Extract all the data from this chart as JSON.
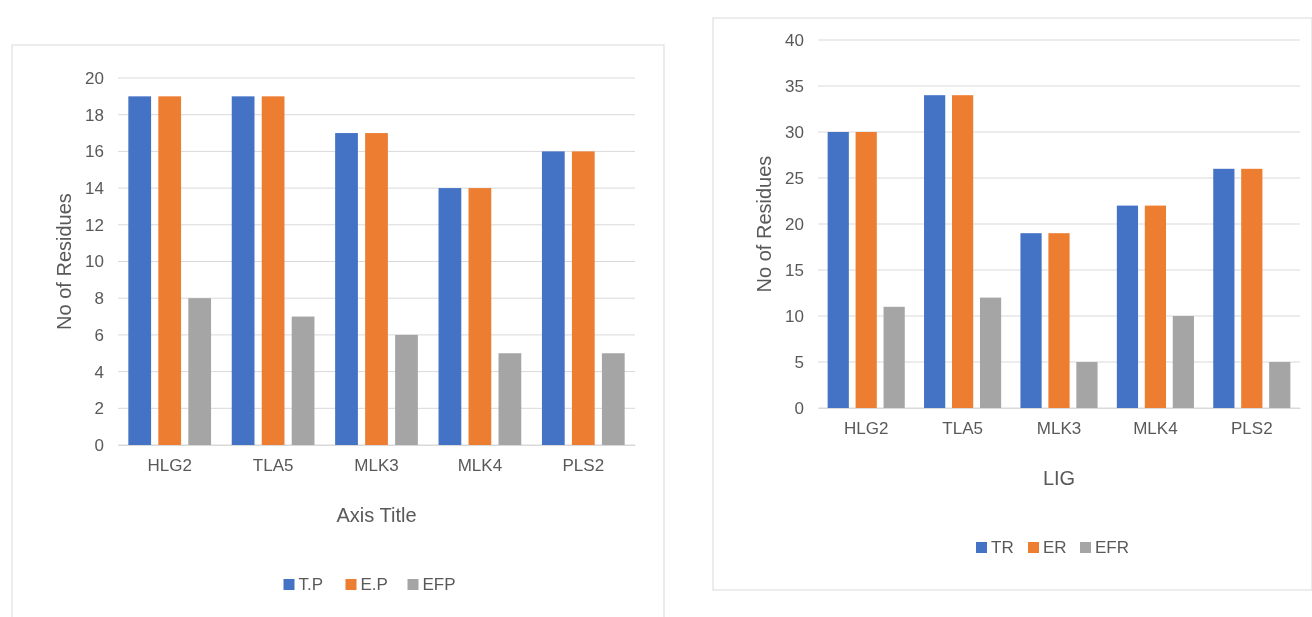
{
  "chart_data": [
    {
      "type": "bar",
      "categories": [
        "HLG2",
        "TLA5",
        "MLK3",
        "MLK4",
        "PLS2"
      ],
      "xlabel": "Axis Title",
      "ylabel": "No of Residues",
      "ylim": [
        0,
        20
      ],
      "yticks": [
        0,
        2,
        4,
        6,
        8,
        10,
        12,
        14,
        16,
        18,
        20
      ],
      "grid": "y",
      "legend": "bottom",
      "series": [
        {
          "name": "T.P",
          "color": "#4472c4",
          "values": [
            19,
            19,
            17,
            14,
            16
          ]
        },
        {
          "name": "E.P",
          "color": "#ed7d31",
          "values": [
            19,
            19,
            17,
            14,
            16
          ]
        },
        {
          "name": "EFP",
          "color": "#a5a5a5",
          "values": [
            8,
            7,
            6,
            5,
            5
          ]
        }
      ]
    },
    {
      "type": "bar",
      "categories": [
        "HLG2",
        "TLA5",
        "MLK3",
        "MLK4",
        "PLS2"
      ],
      "xlabel": "LIG",
      "ylabel": "No of Residues",
      "ylim": [
        0,
        40
      ],
      "yticks": [
        0,
        5,
        10,
        15,
        20,
        25,
        30,
        35,
        40
      ],
      "grid": "y",
      "legend": "bottom",
      "series": [
        {
          "name": "TR",
          "color": "#4472c4",
          "values": [
            30,
            34,
            19,
            22,
            26
          ]
        },
        {
          "name": "ER",
          "color": "#ed7d31",
          "values": [
            30,
            34,
            19,
            22,
            26
          ]
        },
        {
          "name": "EFR",
          "color": "#a5a5a5",
          "values": [
            11,
            12,
            5,
            10,
            5
          ]
        }
      ]
    }
  ]
}
